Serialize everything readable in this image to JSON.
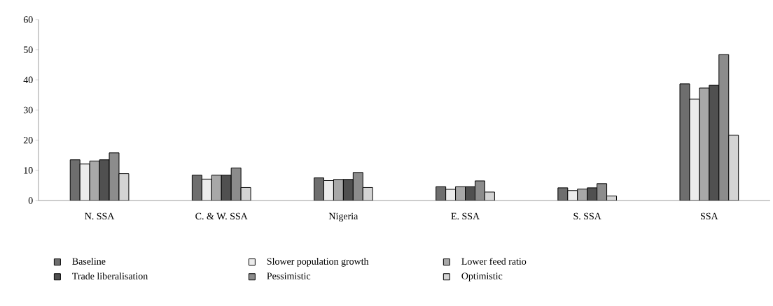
{
  "chart_data": {
    "type": "bar",
    "categories": [
      "N. SSA",
      "C. & W. SSA",
      "Nigeria",
      "E. SSA",
      "S. SSA",
      "SSA"
    ],
    "series": [
      {
        "name": "Baseline",
        "color": "#6e6e6e",
        "values": [
          13.5,
          8.4,
          7.5,
          4.6,
          4.2,
          38.7
        ]
      },
      {
        "name": "Slower population growth",
        "color": "#ececec",
        "values": [
          12.1,
          7.1,
          6.6,
          3.7,
          3.3,
          33.6
        ]
      },
      {
        "name": "Lower feed ratio",
        "color": "#a8a8a8",
        "values": [
          13.1,
          8.4,
          7.0,
          4.6,
          3.8,
          37.3
        ]
      },
      {
        "name": "Trade liberalisation",
        "color": "#505050",
        "values": [
          13.5,
          8.4,
          7.0,
          4.6,
          4.2,
          38.2
        ]
      },
      {
        "name": "Pessimistic",
        "color": "#8c8c8c",
        "values": [
          15.8,
          10.8,
          9.3,
          6.5,
          5.6,
          48.4
        ]
      },
      {
        "name": "Optimistic",
        "color": "#d4d4d4",
        "values": [
          8.9,
          4.3,
          4.3,
          2.8,
          1.5,
          21.7
        ]
      }
    ],
    "ylim": [
      0,
      60
    ],
    "yticks": [
      0,
      10,
      20,
      30,
      40,
      50,
      60
    ],
    "legend": "bottom"
  }
}
